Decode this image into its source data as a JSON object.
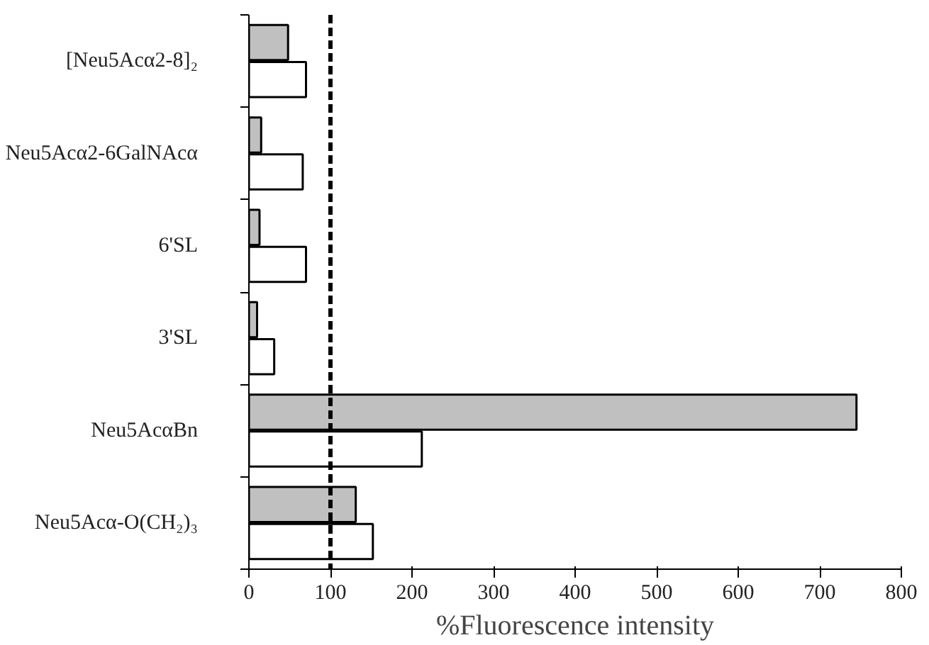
{
  "chart_data": {
    "type": "bar",
    "orientation": "horizontal",
    "categories": [
      "[Neu5Acα2-8]₂",
      "Neu5Acα2-6GalNAcα",
      "6'SL",
      "3'SL",
      "Neu5AcαBn",
      "Neu5Acα-O(CH₂)₃"
    ],
    "series": [
      {
        "color": "#c0c0c0",
        "values": [
          48,
          15,
          13,
          10,
          745,
          131
        ]
      },
      {
        "color": "#ffffff",
        "values": [
          70,
          66,
          70,
          31,
          212,
          152
        ]
      }
    ],
    "xlabel": "%Fluorescence intensity",
    "xlim": [
      0,
      800
    ],
    "xticks": [
      0,
      100,
      200,
      300,
      400,
      500,
      600,
      700,
      800
    ],
    "ref_lines": [
      {
        "axis": "x",
        "value": 100,
        "line_style": "dashed",
        "color": "#000000"
      }
    ]
  }
}
